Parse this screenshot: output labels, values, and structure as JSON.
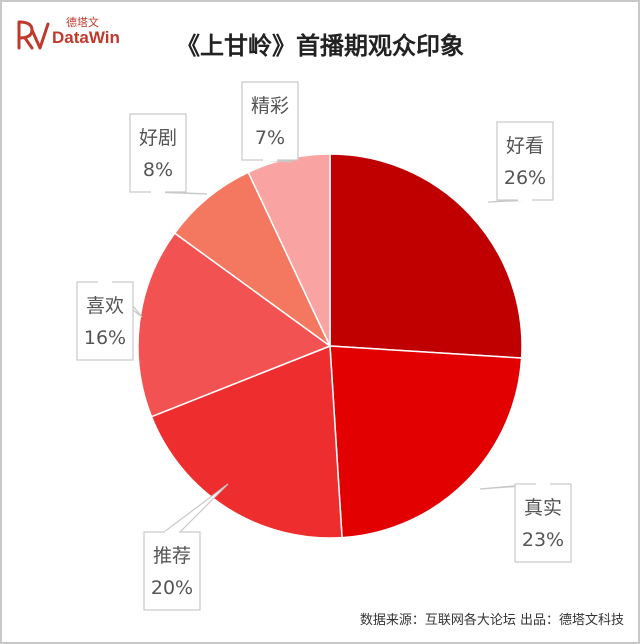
{
  "brand": {
    "name_cn": "德塔文",
    "name_en": "DataWin",
    "color": "#c0392b"
  },
  "footer": {
    "text": "数据来源：互联网各大论坛   出品：德塔文科技"
  },
  "chart_data": {
    "type": "pie",
    "title": "《上甘岭》首播期观众印象",
    "start_angle_deg": 0,
    "direction": "clockwise",
    "slices": [
      {
        "label": "好看",
        "value": 26,
        "display": "26%",
        "color": "#c00000"
      },
      {
        "label": "真实",
        "value": 23,
        "display": "23%",
        "color": "#e30000"
      },
      {
        "label": "推荐",
        "value": 20,
        "display": "20%",
        "color": "#ee2e2e"
      },
      {
        "label": "喜欢",
        "value": 16,
        "display": "16%",
        "color": "#f25252"
      },
      {
        "label": "好剧",
        "value": 8,
        "display": "8%",
        "color": "#f4785f"
      },
      {
        "label": "精彩",
        "value": 7,
        "display": "7%",
        "color": "#f9a3a3"
      }
    ]
  }
}
